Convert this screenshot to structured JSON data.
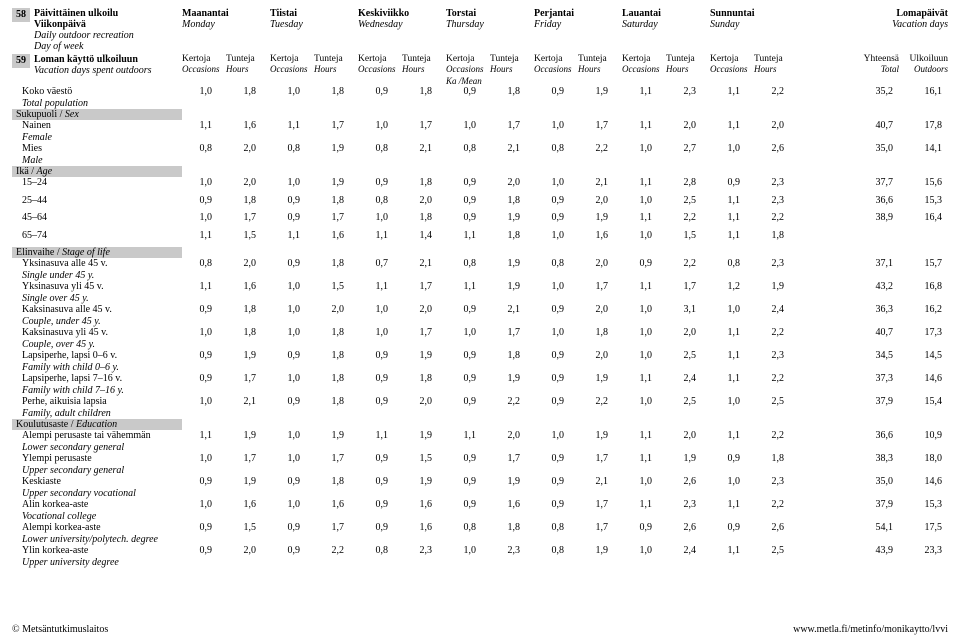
{
  "header": {
    "box1_num": "58",
    "box1_title_fi": "Päivittäinen ulkoilu",
    "box1_sub_fi": "Viikonpäivä",
    "box1_sub_en": "Daily outdoor recreation",
    "box1_sub2_en": "Day of week",
    "box2_num": "59",
    "box2_title_fi": "Loman käyttö ulkoiluun",
    "box2_sub_en": "Vacation days spent outdoors"
  },
  "days": [
    {
      "fi": "Maanantai",
      "en": "Monday"
    },
    {
      "fi": "Tiistai",
      "en": "Tuesday"
    },
    {
      "fi": "Keskiviikko",
      "en": "Wednesday"
    },
    {
      "fi": "Torstai",
      "en": "Thursday"
    },
    {
      "fi": "Perjantai",
      "en": "Friday"
    },
    {
      "fi": "Lauantai",
      "en": "Saturday"
    },
    {
      "fi": "Sunnuntai",
      "en": "Sunday"
    }
  ],
  "right_hdr": {
    "fi": "Lomapäivät",
    "en": "Vacation days"
  },
  "subcols": {
    "a_fi": "Kertoja",
    "a_en": "Occasions",
    "b_fi": "Tunteja",
    "b_en": "Hours"
  },
  "subright": {
    "a_fi": "Yhteensä",
    "a_en": "Total",
    "b_fi": "Ulkoiluun",
    "b_en": "Outdoors"
  },
  "mean_label": "Ka /Mean",
  "rows_top": [
    {
      "fi": "Koko väestö",
      "en": "Total population",
      "v": [
        "1,0",
        "1,8",
        "1,0",
        "1,8",
        "0,9",
        "1,8",
        "0,9",
        "1,8",
        "0,9",
        "1,9",
        "1,1",
        "2,3",
        "1,1",
        "2,2"
      ],
      "t": [
        "35,2",
        "16,1"
      ]
    }
  ],
  "sec_sex": {
    "fi": "Sukupuoli / ",
    "en": "Sex"
  },
  "rows_sex": [
    {
      "fi": "Nainen",
      "en": "Female",
      "v": [
        "1,1",
        "1,6",
        "1,1",
        "1,7",
        "1,0",
        "1,7",
        "1,0",
        "1,7",
        "1,0",
        "1,7",
        "1,1",
        "2,0",
        "1,1",
        "2,0"
      ],
      "t": [
        "40,7",
        "17,8"
      ]
    },
    {
      "fi": "Mies",
      "en": "Male",
      "v": [
        "0,8",
        "2,0",
        "0,8",
        "1,9",
        "0,8",
        "2,1",
        "0,8",
        "2,1",
        "0,8",
        "2,2",
        "1,0",
        "2,7",
        "1,0",
        "2,6"
      ],
      "t": [
        "35,0",
        "14,1"
      ]
    }
  ],
  "sec_age": {
    "fi": "Ikä / ",
    "en": "Age"
  },
  "rows_age": [
    {
      "fi": "15–24",
      "en": "",
      "v": [
        "1,0",
        "2,0",
        "1,0",
        "1,9",
        "0,9",
        "1,8",
        "0,9",
        "2,0",
        "1,0",
        "2,1",
        "1,1",
        "2,8",
        "0,9",
        "2,3"
      ],
      "t": [
        "37,7",
        "15,6"
      ]
    },
    {
      "fi": "25–44",
      "en": "",
      "v": [
        "0,9",
        "1,8",
        "0,9",
        "1,8",
        "0,8",
        "2,0",
        "0,9",
        "1,8",
        "0,9",
        "2,0",
        "1,0",
        "2,5",
        "1,1",
        "2,3"
      ],
      "t": [
        "36,6",
        "15,3"
      ]
    },
    {
      "fi": "45–64",
      "en": "",
      "v": [
        "1,0",
        "1,7",
        "0,9",
        "1,7",
        "1,0",
        "1,8",
        "0,9",
        "1,9",
        "0,9",
        "1,9",
        "1,1",
        "2,2",
        "1,1",
        "2,2"
      ],
      "t": [
        "38,9",
        "16,4"
      ]
    },
    {
      "fi": "65–74",
      "en": "",
      "v": [
        "1,1",
        "1,5",
        "1,1",
        "1,6",
        "1,1",
        "1,4",
        "1,1",
        "1,8",
        "1,0",
        "1,6",
        "1,0",
        "1,5",
        "1,1",
        "1,8"
      ],
      "t": [
        "",
        ""
      ]
    }
  ],
  "sec_life": {
    "fi": "Elinvaihe / ",
    "en": "Stage of life"
  },
  "rows_life": [
    {
      "fi": "Yksinasuva alle 45 v.",
      "en": "Single under 45 y.",
      "v": [
        "0,8",
        "2,0",
        "0,9",
        "1,8",
        "0,7",
        "2,1",
        "0,8",
        "1,9",
        "0,8",
        "2,0",
        "0,9",
        "2,2",
        "0,8",
        "2,3"
      ],
      "t": [
        "37,1",
        "15,7"
      ]
    },
    {
      "fi": "Yksinasuva yli 45 v.",
      "en": "Single over 45 y.",
      "v": [
        "1,1",
        "1,6",
        "1,0",
        "1,5",
        "1,1",
        "1,7",
        "1,1",
        "1,9",
        "1,0",
        "1,7",
        "1,1",
        "1,7",
        "1,2",
        "1,9"
      ],
      "t": [
        "43,2",
        "16,8"
      ]
    },
    {
      "fi": "Kaksinasuva alle 45 v.",
      "en": "Couple, under 45 y.",
      "v": [
        "0,9",
        "1,8",
        "1,0",
        "2,0",
        "1,0",
        "2,0",
        "0,9",
        "2,1",
        "0,9",
        "2,0",
        "1,0",
        "3,1",
        "1,0",
        "2,4"
      ],
      "t": [
        "36,3",
        "16,2"
      ]
    },
    {
      "fi": "Kaksinasuva yli 45 v.",
      "en": "Couple, over 45 y.",
      "v": [
        "1,0",
        "1,8",
        "1,0",
        "1,8",
        "1,0",
        "1,7",
        "1,0",
        "1,7",
        "1,0",
        "1,8",
        "1,0",
        "2,0",
        "1,1",
        "2,2"
      ],
      "t": [
        "40,7",
        "17,3"
      ]
    },
    {
      "fi": "Lapsiperhe, lapsi 0–6 v.",
      "en": "Family with child 0–6 y.",
      "v": [
        "0,9",
        "1,9",
        "0,9",
        "1,8",
        "0,9",
        "1,9",
        "0,9",
        "1,8",
        "0,9",
        "2,0",
        "1,0",
        "2,5",
        "1,1",
        "2,3"
      ],
      "t": [
        "34,5",
        "14,5"
      ]
    },
    {
      "fi": "Lapsiperhe, lapsi 7–16 v.",
      "en": "Family with child 7–16 y.",
      "v": [
        "0,9",
        "1,7",
        "1,0",
        "1,8",
        "0,9",
        "1,8",
        "0,9",
        "1,9",
        "0,9",
        "1,9",
        "1,1",
        "2,4",
        "1,1",
        "2,2"
      ],
      "t": [
        "37,3",
        "14,6"
      ]
    },
    {
      "fi": "Perhe, aikuisia lapsia",
      "en": "Family, adult children",
      "v": [
        "1,0",
        "2,1",
        "0,9",
        "1,8",
        "0,9",
        "2,0",
        "0,9",
        "2,2",
        "0,9",
        "2,2",
        "1,0",
        "2,5",
        "1,0",
        "2,5"
      ],
      "t": [
        "37,9",
        "15,4"
      ]
    }
  ],
  "sec_edu": {
    "fi": "Koulutusaste / ",
    "en": "Education"
  },
  "rows_edu": [
    {
      "fi": "Alempi perusaste tai vähemmän",
      "en": "Lower secondary general",
      "v": [
        "1,1",
        "1,9",
        "1,0",
        "1,9",
        "1,1",
        "1,9",
        "1,1",
        "2,0",
        "1,0",
        "1,9",
        "1,1",
        "2,0",
        "1,1",
        "2,2"
      ],
      "t": [
        "36,6",
        "10,9"
      ]
    },
    {
      "fi": "Ylempi perusaste",
      "en": "Upper secondary general",
      "v": [
        "1,0",
        "1,7",
        "1,0",
        "1,7",
        "0,9",
        "1,5",
        "0,9",
        "1,7",
        "0,9",
        "1,7",
        "1,1",
        "1,9",
        "0,9",
        "1,8"
      ],
      "t": [
        "38,3",
        "18,0"
      ]
    },
    {
      "fi": "Keskiaste",
      "en": "Upper secondary vocational",
      "v": [
        "0,9",
        "1,9",
        "0,9",
        "1,8",
        "0,9",
        "1,9",
        "0,9",
        "1,9",
        "0,9",
        "2,1",
        "1,0",
        "2,6",
        "1,0",
        "2,3"
      ],
      "t": [
        "35,0",
        "14,6"
      ]
    },
    {
      "fi": "Alin korkea-aste",
      "en": "Vocational college",
      "v": [
        "1,0",
        "1,6",
        "1,0",
        "1,6",
        "0,9",
        "1,6",
        "0,9",
        "1,6",
        "0,9",
        "1,7",
        "1,1",
        "2,3",
        "1,1",
        "2,2"
      ],
      "t": [
        "37,9",
        "15,3"
      ]
    },
    {
      "fi": "Alempi korkea-aste",
      "en": "Lower university/polytech. degree",
      "v": [
        "0,9",
        "1,5",
        "0,9",
        "1,7",
        "0,9",
        "1,6",
        "0,8",
        "1,8",
        "0,8",
        "1,7",
        "0,9",
        "2,6",
        "0,9",
        "2,6"
      ],
      "t": [
        "54,1",
        "17,5"
      ]
    },
    {
      "fi": "Ylin korkea-aste",
      "en": "Upper university degree",
      "v": [
        "0,9",
        "2,0",
        "0,9",
        "2,2",
        "0,8",
        "2,3",
        "1,0",
        "2,3",
        "0,8",
        "1,9",
        "1,0",
        "2,4",
        "1,1",
        "2,5"
      ],
      "t": [
        "43,9",
        "23,3"
      ]
    }
  ],
  "footer": {
    "left": "Metsäntutkimuslaitos",
    "right": "www.metla.fi/metinfo/monikaytto/lvvi"
  }
}
